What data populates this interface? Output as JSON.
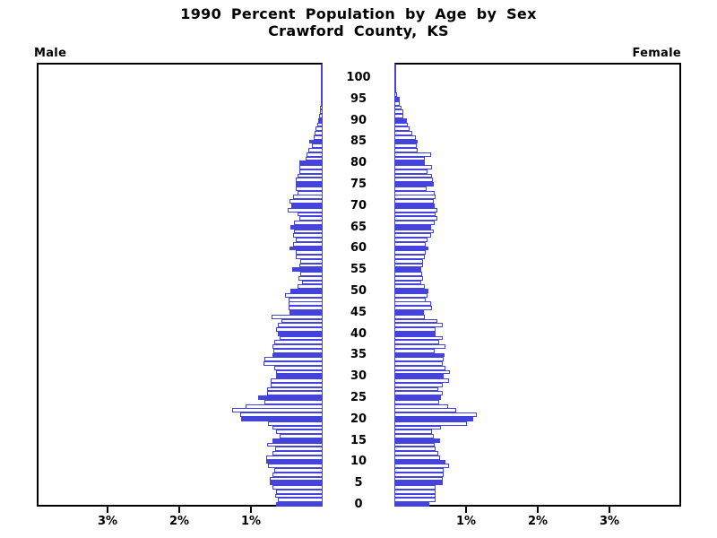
{
  "title": {
    "line1": "1990 Percent Population by Age by Sex",
    "line2": "Crawford County, KS"
  },
  "side_labels": {
    "left": "Male",
    "right": "Female"
  },
  "colors": {
    "bar_outline": "#4444dd",
    "bar_fill_solid": "#4444dd",
    "bar_fill_empty": "#ffffff",
    "axis": "#000000",
    "background": "#ffffff"
  },
  "chart_data": {
    "type": "bar",
    "subtype": "population-pyramid",
    "title": "1990 Percent Population by Age by Sex — Crawford County, KS",
    "orientation": "horizontal, ages vertical, males left, females right",
    "fill_rule": "bars for ages divisible by 5 are solid filled; other ages are white with blue outline",
    "x_axis": {
      "unit": "percent of population",
      "max_percent": 4,
      "tick_percents": [
        1,
        2,
        3
      ],
      "male_tick_labels": [
        "1%",
        "2%",
        "3%"
      ],
      "female_tick_labels": [
        "1%",
        "2%",
        "3%"
      ],
      "grid": false
    },
    "y_axis": {
      "age_min": 0,
      "age_max": 100,
      "age_tick_step": 5,
      "age_tick_labels": [
        "0",
        "5",
        "10",
        "15",
        "20",
        "25",
        "30",
        "35",
        "40",
        "45",
        "50",
        "55",
        "60",
        "65",
        "70",
        "75",
        "80",
        "85",
        "90",
        "95",
        "100"
      ]
    },
    "series": [
      {
        "name": "Male",
        "ages_start_at": 0,
        "values_percent": [
          0.65,
          0.63,
          0.66,
          0.65,
          0.7,
          0.74,
          0.74,
          0.7,
          0.67,
          0.76,
          0.79,
          0.79,
          0.7,
          0.66,
          0.77,
          0.7,
          0.6,
          0.65,
          0.7,
          0.76,
          1.14,
          1.15,
          1.26,
          1.08,
          0.81,
          0.9,
          0.78,
          0.77,
          0.72,
          0.73,
          0.65,
          0.65,
          0.67,
          0.83,
          0.81,
          0.7,
          0.69,
          0.7,
          0.67,
          0.6,
          0.62,
          0.65,
          0.62,
          0.58,
          0.71,
          0.46,
          0.48,
          0.48,
          0.48,
          0.52,
          0.45,
          0.35,
          0.29,
          0.34,
          0.31,
          0.43,
          0.33,
          0.31,
          0.38,
          0.38,
          0.46,
          0.41,
          0.38,
          0.41,
          0.4,
          0.45,
          0.4,
          0.33,
          0.35,
          0.49,
          0.44,
          0.46,
          0.41,
          0.35,
          0.38,
          0.38,
          0.38,
          0.35,
          0.33,
          0.33,
          0.33,
          0.24,
          0.22,
          0.2,
          0.15,
          0.19,
          0.13,
          0.11,
          0.1,
          0.07,
          0.06,
          0.05,
          0.04,
          0.035,
          0.03,
          0.025,
          0.02,
          0.01,
          0.015,
          0.005,
          0.015
        ]
      },
      {
        "name": "Female",
        "ages_start_at": 0,
        "values_percent": [
          0.49,
          0.57,
          0.57,
          0.58,
          0.58,
          0.67,
          0.68,
          0.69,
          0.69,
          0.76,
          0.71,
          0.64,
          0.61,
          0.58,
          0.56,
          0.64,
          0.55,
          0.52,
          0.65,
          1.01,
          1.1,
          1.15,
          0.86,
          0.75,
          0.63,
          0.65,
          0.67,
          0.61,
          0.68,
          0.76,
          0.69,
          0.78,
          0.71,
          0.68,
          0.69,
          0.7,
          0.56,
          0.71,
          0.62,
          0.68,
          0.57,
          0.58,
          0.68,
          0.6,
          0.43,
          0.41,
          0.52,
          0.51,
          0.44,
          0.46,
          0.48,
          0.42,
          0.38,
          0.4,
          0.39,
          0.38,
          0.4,
          0.4,
          0.42,
          0.44,
          0.47,
          0.44,
          0.46,
          0.51,
          0.55,
          0.51,
          0.56,
          0.6,
          0.58,
          0.6,
          0.56,
          0.55,
          0.57,
          0.56,
          0.45,
          0.55,
          0.54,
          0.52,
          0.46,
          0.53,
          0.43,
          0.42,
          0.51,
          0.32,
          0.31,
          0.33,
          0.3,
          0.25,
          0.21,
          0.19,
          0.17,
          0.12,
          0.12,
          0.1,
          0.075,
          0.075,
          0.04,
          0.03,
          0.0,
          0.01,
          0.03
        ]
      }
    ]
  }
}
